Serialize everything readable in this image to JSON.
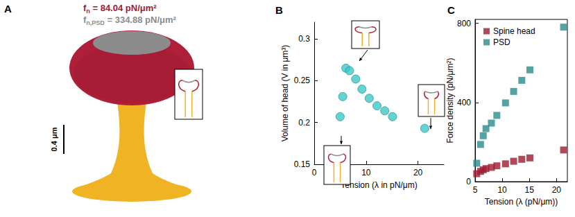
{
  "diagram": {
    "title": "A",
    "head_force": {
      "symbol": "f",
      "subscript": "n",
      "text": " = 84.04 pN/μm²",
      "color": "#9e1b32"
    },
    "psd_force": {
      "symbol": "f",
      "subscript": "n,PSD",
      "text": " = 334.88 pN/μm²",
      "color": "#8c8c8c"
    },
    "scale_bar": "0.4 μm"
  },
  "chart_data": [
    {
      "type": "scatter",
      "title": "B",
      "x_label": "Tension (λ in pN/μm)",
      "y_label": "Volume of head (V in μm³)",
      "x": [
        5.0,
        5.5,
        6.1,
        6.8,
        8.0,
        9.2,
        10.6,
        12.1,
        13.6,
        15.1,
        21.3
      ],
      "values": [
        0.207,
        0.231,
        0.265,
        0.262,
        0.252,
        0.24,
        0.229,
        0.22,
        0.214,
        0.207,
        0.193
      ],
      "color": "#40c8c8",
      "marker": "circle",
      "xlim": [
        0,
        25
      ],
      "xticks": [
        0,
        10,
        20
      ],
      "ylim": [
        0.15,
        0.32
      ],
      "yticks": [
        0.15,
        0.2,
        0.25,
        0.3
      ]
    },
    {
      "type": "scatter",
      "title": "C",
      "x_label": "Tension (λ (pN/μm))",
      "y_label": "Force density (pN/μm²)",
      "x": [
        5.3,
        6.0,
        6.5,
        7.0,
        8.0,
        9.0,
        10.6,
        12.1,
        13.6,
        15.1,
        21.3
      ],
      "series": [
        {
          "name": "Spine head",
          "color": "#9e1b32",
          "marker": "square",
          "values": [
            40,
            52,
            60,
            66,
            72,
            80,
            90,
            103,
            113,
            120,
            160
          ]
        },
        {
          "name": "PSD",
          "color": "#2a8c8c",
          "marker": "square",
          "values": [
            93,
            188,
            232,
            268,
            296,
            335,
            398,
            456,
            512,
            565,
            781
          ]
        }
      ],
      "legend": "upper left",
      "xlim": [
        5,
        22
      ],
      "xticks": [
        5,
        10,
        15,
        20
      ],
      "ylim": [
        0,
        820
      ],
      "yticks": [
        0,
        400,
        800
      ]
    }
  ]
}
